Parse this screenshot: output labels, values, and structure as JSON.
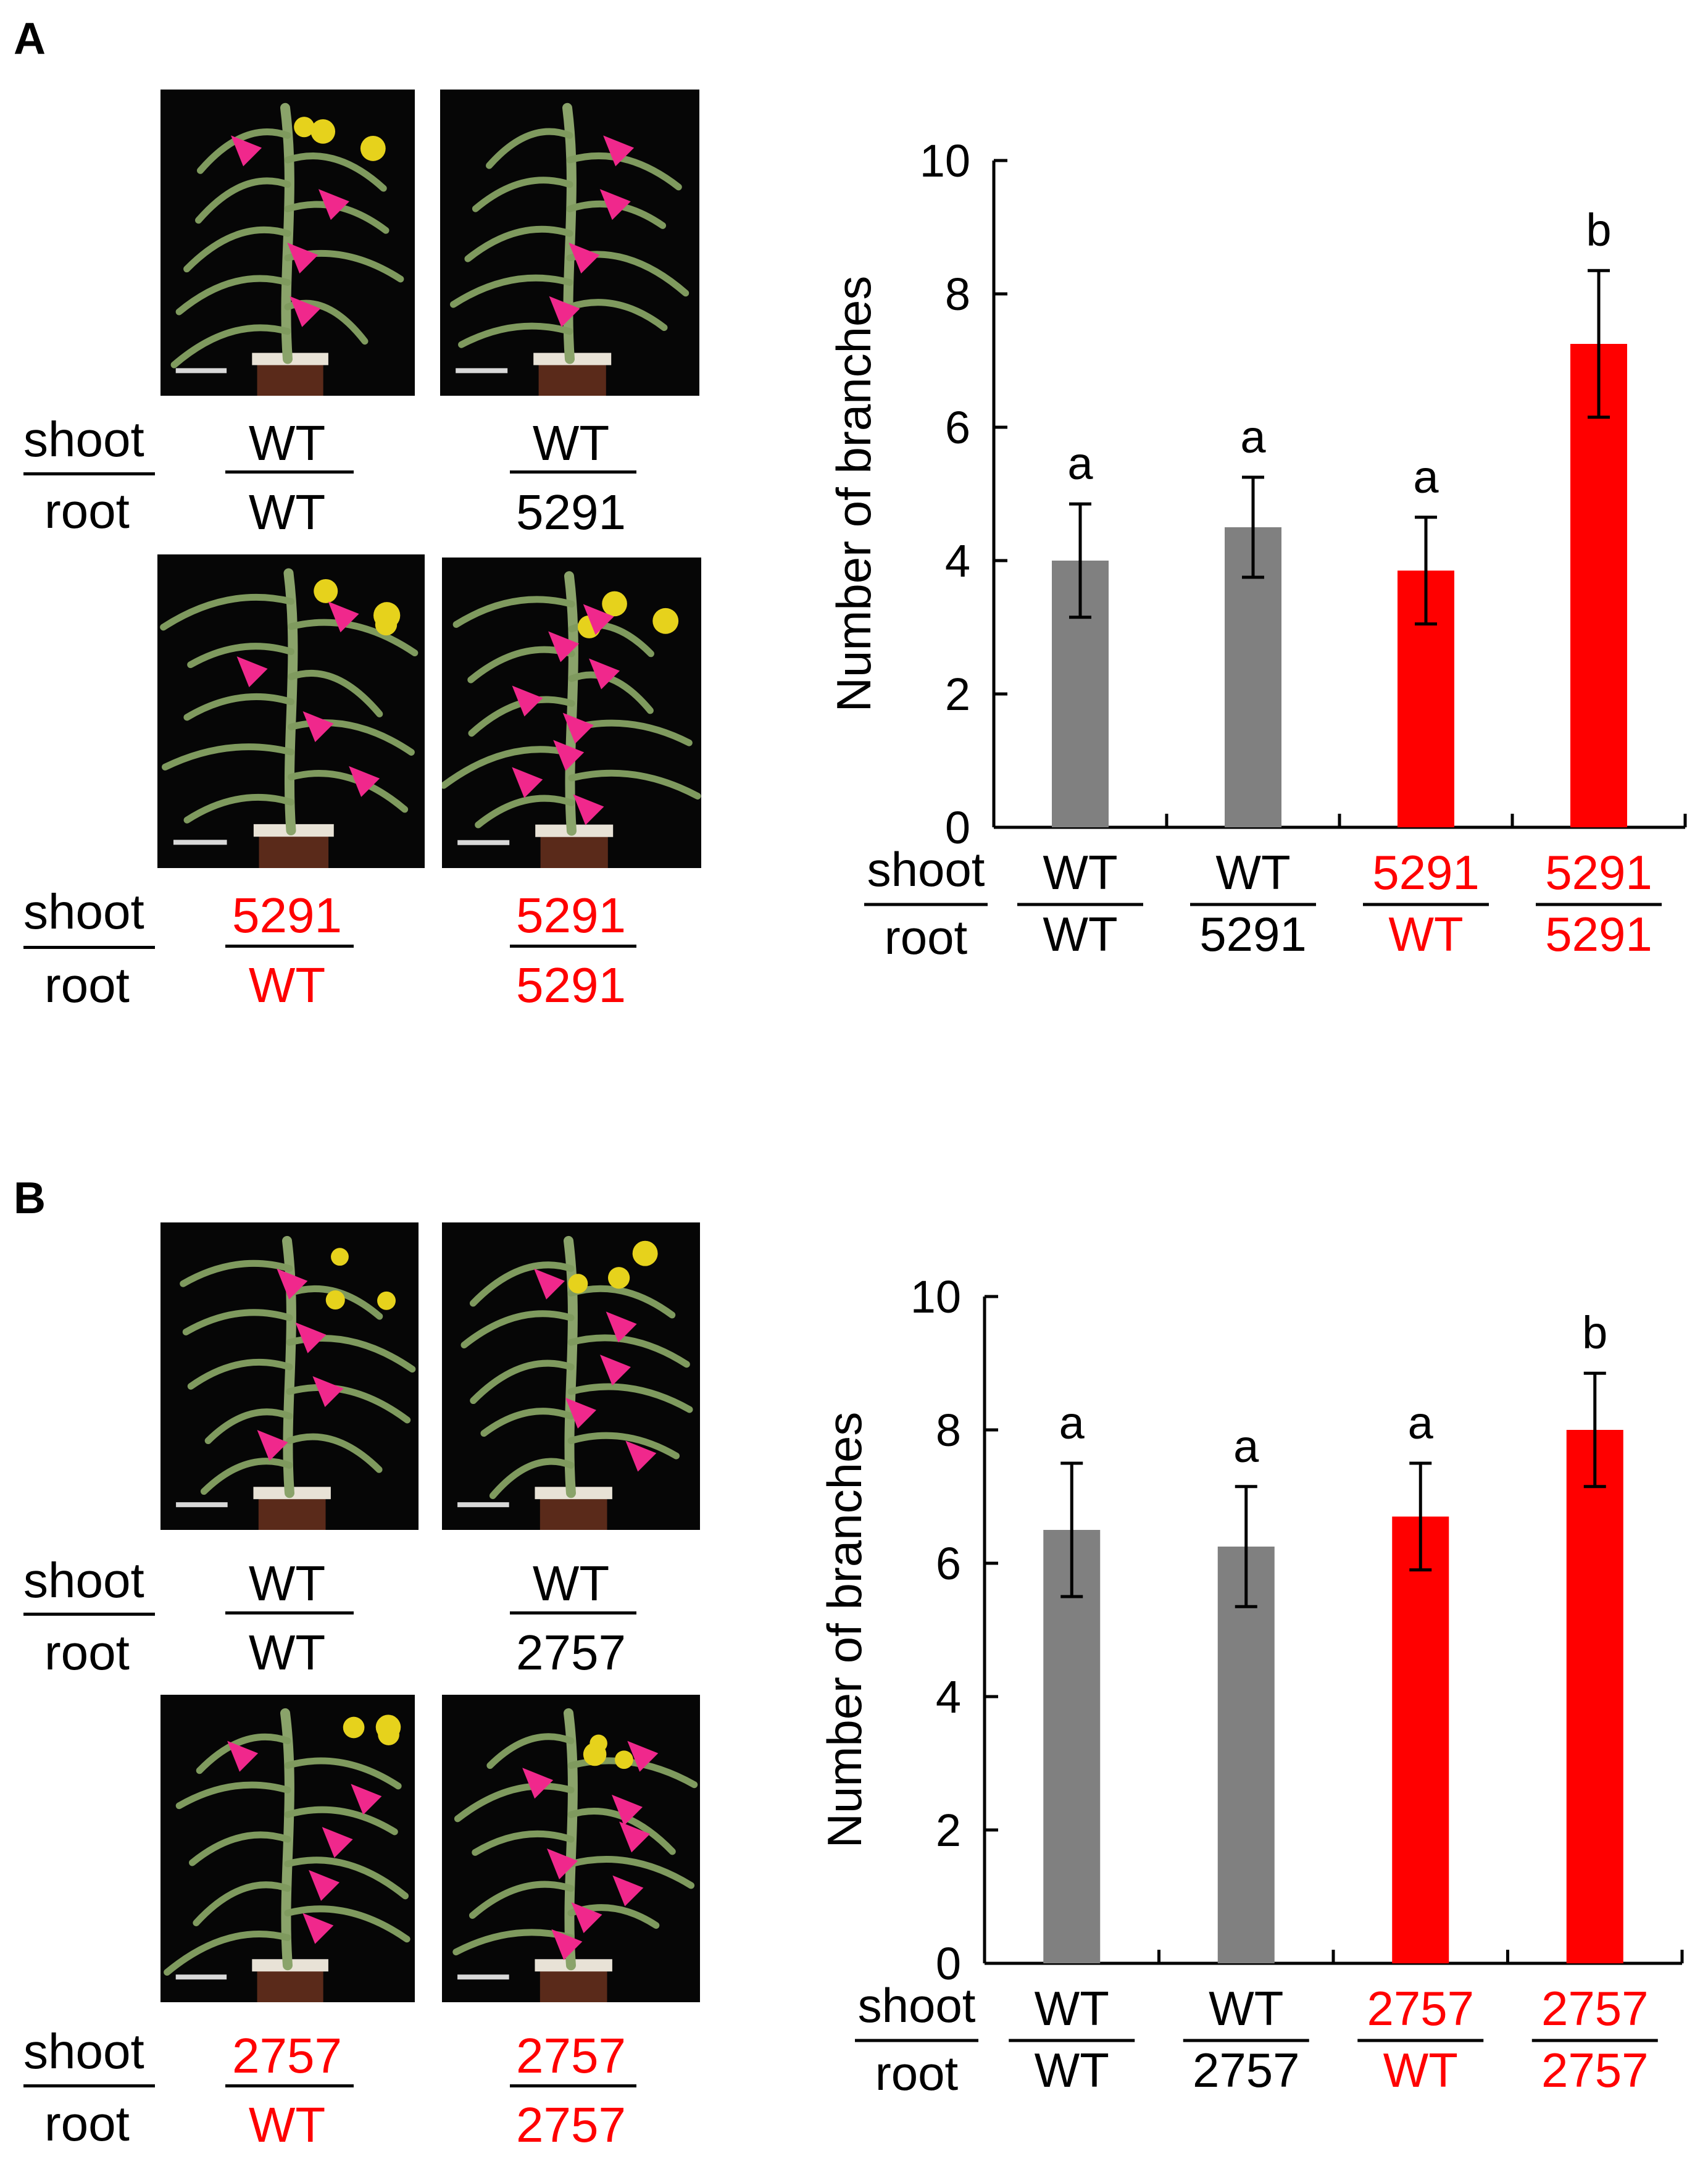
{
  "panels": [
    {
      "letter": "A",
      "photo_grid": [
        {
          "shoot": "WT",
          "root": "WT",
          "shoot_color": "#000000",
          "root_color": "#000000",
          "flowers": true,
          "arrowhead_count": 4
        },
        {
          "shoot": "WT",
          "root": "5291",
          "shoot_color": "#000000",
          "root_color": "#000000",
          "flowers": false,
          "arrowhead_count": 4
        },
        {
          "shoot": "5291",
          "root": "WT",
          "shoot_color": "#ff0000",
          "root_color": "#ff0000",
          "flowers": true,
          "arrowhead_count": 4
        },
        {
          "shoot": "5291",
          "root": "5291",
          "shoot_color": "#ff0000",
          "root_color": "#ff0000",
          "flowers": true,
          "arrowhead_count": 8
        }
      ],
      "row_headers": {
        "shoot": "shoot",
        "root": "root"
      },
      "chart_data": {
        "type": "bar",
        "ylabel": "Number of branches",
        "ylim": [
          0,
          10
        ],
        "yticks": [
          "0",
          "2",
          "4",
          "6",
          "8",
          "10"
        ],
        "categories": [
          {
            "shoot": "WT",
            "root": "WT"
          },
          {
            "shoot": "WT",
            "root": "5291"
          },
          {
            "shoot": "5291",
            "root": "WT"
          },
          {
            "shoot": "5291",
            "root": "5291"
          }
        ],
        "values": [
          4.0,
          4.5,
          3.85,
          7.25
        ],
        "errors": [
          0.85,
          0.75,
          0.8,
          1.1
        ],
        "significance": [
          "a",
          "a",
          "a",
          "b"
        ],
        "bar_colors": [
          "#808080",
          "#808080",
          "#ff0000",
          "#ff0000"
        ],
        "label_colors": [
          "#000000",
          "#000000",
          "#ff0000",
          "#ff0000"
        ],
        "axis_row_headers": {
          "shoot": "shoot",
          "root": "root"
        }
      }
    },
    {
      "letter": "B",
      "photo_grid": [
        {
          "shoot": "WT",
          "root": "WT",
          "shoot_color": "#000000",
          "root_color": "#000000",
          "flowers": true,
          "arrowhead_count": 4
        },
        {
          "shoot": "WT",
          "root": "2757",
          "shoot_color": "#000000",
          "root_color": "#000000",
          "flowers": true,
          "arrowhead_count": 5
        },
        {
          "shoot": "2757",
          "root": "WT",
          "shoot_color": "#ff0000",
          "root_color": "#ff0000",
          "flowers": true,
          "arrowhead_count": 5
        },
        {
          "shoot": "2757",
          "root": "2757",
          "shoot_color": "#ff0000",
          "root_color": "#ff0000",
          "flowers": true,
          "arrowhead_count": 8
        }
      ],
      "row_headers": {
        "shoot": "shoot",
        "root": "root"
      },
      "chart_data": {
        "type": "bar",
        "ylabel": "Number of branches",
        "ylim": [
          0,
          10
        ],
        "yticks": [
          "0",
          "2",
          "4",
          "6",
          "8",
          "10"
        ],
        "categories": [
          {
            "shoot": "WT",
            "root": "WT"
          },
          {
            "shoot": "WT",
            "root": "2757"
          },
          {
            "shoot": "2757",
            "root": "WT"
          },
          {
            "shoot": "2757",
            "root": "2757"
          }
        ],
        "values": [
          6.5,
          6.25,
          6.7,
          8.0
        ],
        "errors": [
          1.0,
          0.9,
          0.8,
          0.85
        ],
        "significance": [
          "a",
          "a",
          "a",
          "b"
        ],
        "bar_colors": [
          "#808080",
          "#808080",
          "#ff0000",
          "#ff0000"
        ],
        "label_colors": [
          "#000000",
          "#000000",
          "#ff0000",
          "#ff0000"
        ],
        "axis_row_headers": {
          "shoot": "shoot",
          "root": "root"
        }
      }
    }
  ]
}
